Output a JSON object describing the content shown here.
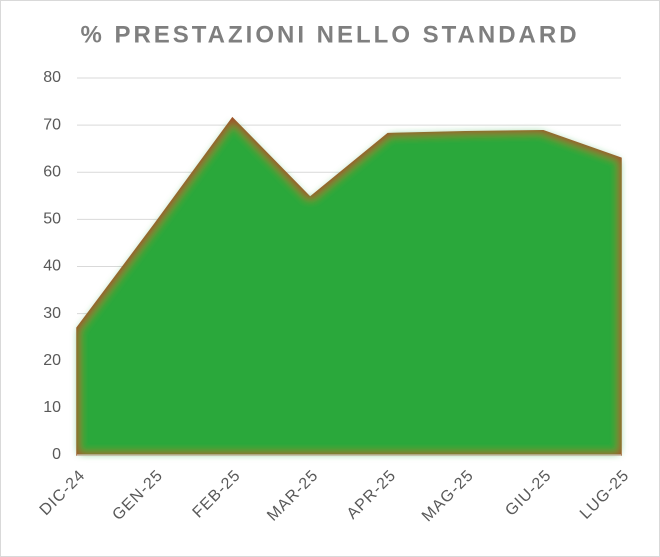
{
  "chart_data": {
    "type": "area",
    "title": "% PRESTAZIONI NELLO STANDARD",
    "categories": [
      "DIC-24",
      "GEN-25",
      "FEB-25",
      "MAR-25",
      "APR-25",
      "MAG-25",
      "GIU-25",
      "LUG-25"
    ],
    "values": [
      27,
      49,
      71.5,
      54.7,
      68.2,
      68.6,
      68.8,
      63
    ],
    "color": "#2aa83a",
    "edge_color": "#a0522d",
    "ylim": [
      0,
      80
    ],
    "yticks": [
      0,
      10,
      20,
      30,
      40,
      50,
      60,
      70,
      80
    ],
    "grid": true
  }
}
